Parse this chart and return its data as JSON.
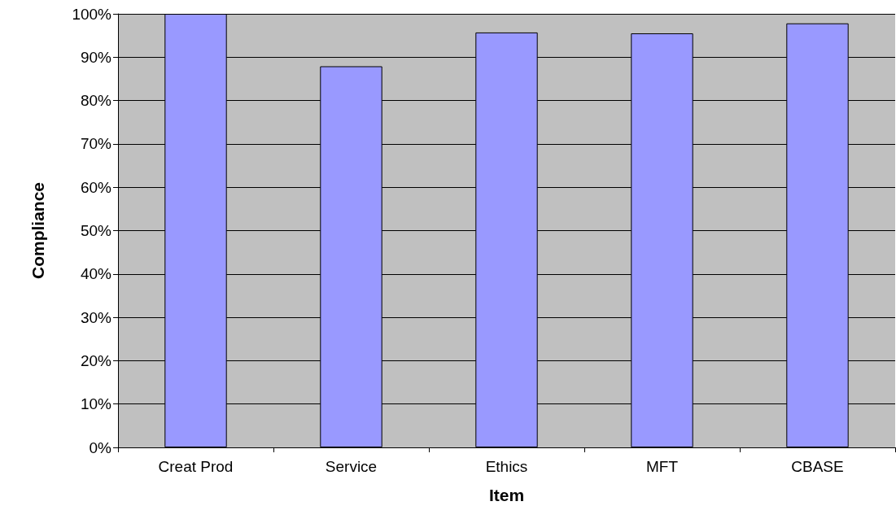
{
  "chart_data": {
    "type": "bar",
    "xlabel": "Item",
    "ylabel": "Compliance",
    "categories": [
      "Creat Prod",
      "Service",
      "Ethics",
      "MFT",
      "CBASE"
    ],
    "values": [
      100,
      87.9,
      95.7,
      95.5,
      97.8
    ],
    "color": "#9999ff",
    "ylim": [
      0,
      100
    ],
    "yticks": [
      {
        "value": 0,
        "label": "0%"
      },
      {
        "value": 10,
        "label": "10%"
      },
      {
        "value": 20,
        "label": "20%"
      },
      {
        "value": 30,
        "label": "30%"
      },
      {
        "value": 40,
        "label": "40%"
      },
      {
        "value": 50,
        "label": "50%"
      },
      {
        "value": 60,
        "label": "60%"
      },
      {
        "value": 70,
        "label": "70%"
      },
      {
        "value": 80,
        "label": "80%"
      },
      {
        "value": 90,
        "label": "90%"
      },
      {
        "value": 100,
        "label": "100%"
      }
    ],
    "grid": "y"
  }
}
